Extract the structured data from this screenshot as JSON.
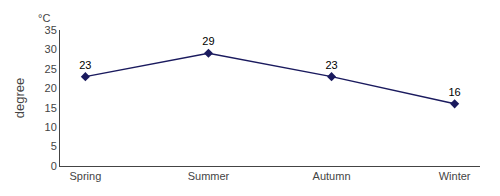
{
  "chart_data": {
    "type": "line",
    "categories": [
      "Spring",
      "Summer",
      "Autumn",
      "Winter"
    ],
    "values": [
      23,
      29,
      23,
      16
    ],
    "color": "#1a1a5e",
    "marker": "diamond",
    "ylabel": "degree",
    "annotations": [
      "°C"
    ],
    "ylim": [
      0,
      35
    ],
    "yticks": [
      0,
      5,
      10,
      15,
      20,
      25,
      30,
      35
    ],
    "grid": false,
    "data_labels": true
  }
}
